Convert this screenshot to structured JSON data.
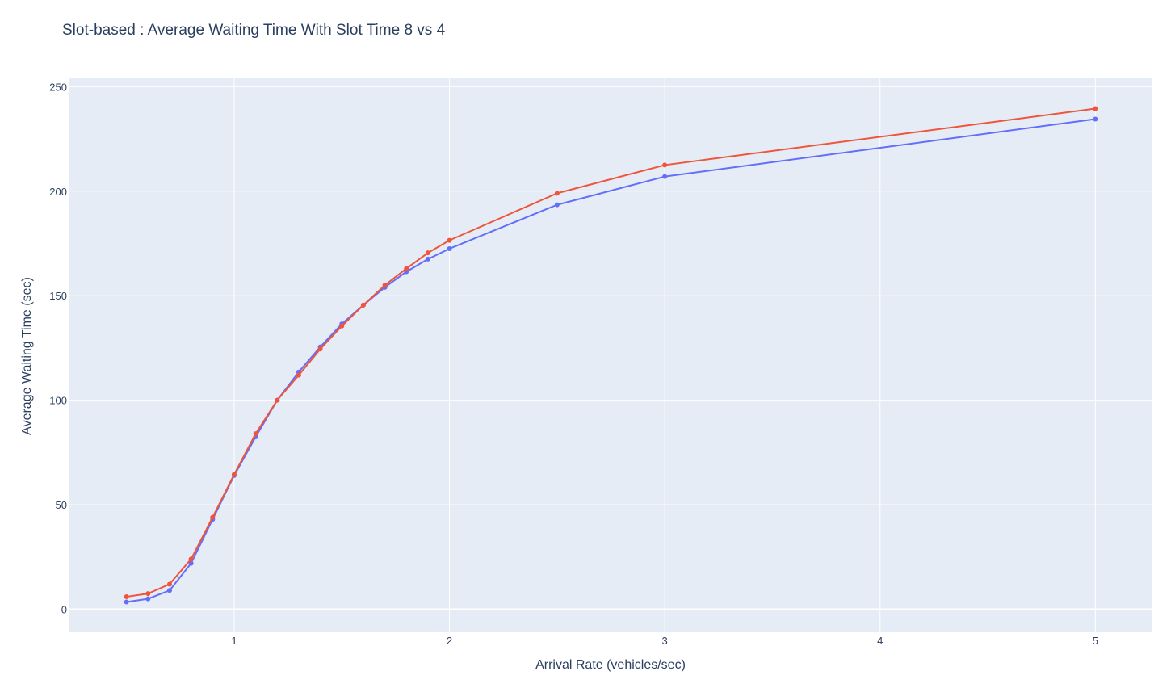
{
  "chart_data": {
    "type": "line",
    "title": "Slot-based : Average Waiting Time With Slot Time 8 vs 4",
    "xlabel": "Arrival Rate (vehicles/sec)",
    "ylabel": "Average Waiting Time (sec)",
    "xlim": [
      0.235,
      5.265
    ],
    "ylim": [
      -11,
      254
    ],
    "x_ticks": [
      1,
      2,
      3,
      4,
      5
    ],
    "y_ticks": [
      0,
      50,
      100,
      150,
      200,
      250
    ],
    "grid": true,
    "legend": "none",
    "x": [
      0.5,
      0.6,
      0.7,
      0.8,
      0.9,
      1.0,
      1.1,
      1.2,
      1.3,
      1.4,
      1.5,
      1.6,
      1.7,
      1.8,
      1.9,
      2.0,
      2.5,
      3.0,
      5.0
    ],
    "series": [
      {
        "color": "#636efa",
        "values": [
          3.5,
          5,
          9,
          22,
          43,
          64,
          82.5,
          100,
          113.5,
          125.5,
          136.5,
          145.5,
          154,
          161.5,
          167.5,
          172.5,
          193.5,
          207,
          234.5
        ]
      },
      {
        "color": "#ef553b",
        "values": [
          6,
          7.5,
          12,
          24,
          44,
          64.5,
          84,
          100,
          112,
          124.5,
          135.5,
          145.5,
          155,
          163,
          170.5,
          176.5,
          199,
          212.5,
          239.5
        ]
      }
    ]
  },
  "colors": {
    "plot_background": "#e5ecf6",
    "grid": "#ffffff",
    "text": "#2a3f5f"
  }
}
